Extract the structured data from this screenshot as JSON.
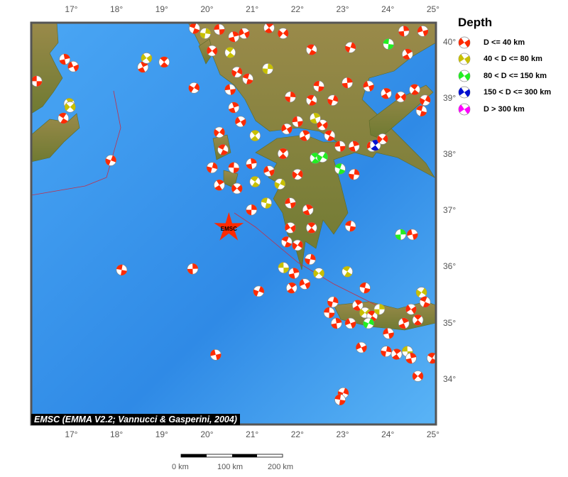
{
  "map": {
    "lon_range": [
      16.1,
      25.05
    ],
    "lat_range": [
      33.2,
      40.35
    ],
    "lon_ticks": [
      "17°",
      "18°",
      "19°",
      "20°",
      "21°",
      "22°",
      "23°",
      "24°",
      "25°"
    ],
    "lat_ticks": [
      "34°",
      "35°",
      "36°",
      "37°",
      "38°",
      "39°",
      "40°"
    ],
    "credit": "EMSC (EMMA V2.2; Vannucci & Gasperini, 2004)",
    "star": {
      "label": "EMSC",
      "lon": 20.47,
      "lat": 36.7,
      "color": "#ff2a00"
    },
    "colors": {
      "sea": "#3a9cf0",
      "land": "#8a7a3a",
      "trench": "#c0304a"
    }
  },
  "legend": {
    "title": "Depth",
    "items": [
      {
        "label": "D <= 40 km",
        "color": "#ff2a00"
      },
      {
        "label": "40 < D <= 80 km",
        "color": "#c8c000"
      },
      {
        "label": "80 < D <= 150 km",
        "color": "#22ee22"
      },
      {
        "label": "150 < D <= 300 km",
        "color": "#0010d0"
      },
      {
        "label": "D > 300 km",
        "color": "#ff00ff"
      }
    ]
  },
  "scale_bar": {
    "labels": [
      "0 km",
      "100 km",
      "200 km"
    ]
  },
  "events": [
    [
      16.22,
      39.31,
      0
    ],
    [
      16.84,
      39.7,
      0
    ],
    [
      17.03,
      39.57,
      0
    ],
    [
      16.94,
      38.91,
      1
    ],
    [
      16.96,
      38.85,
      1
    ],
    [
      16.81,
      38.65,
      0
    ],
    [
      17.86,
      37.9,
      0
    ],
    [
      18.1,
      35.95,
      0
    ],
    [
      19.67,
      35.97,
      0
    ],
    [
      20.18,
      34.44,
      0
    ],
    [
      18.57,
      39.56,
      0
    ],
    [
      18.65,
      39.72,
      1
    ],
    [
      19.04,
      39.65,
      0
    ],
    [
      19.7,
      39.19,
      0
    ],
    [
      19.71,
      40.25,
      0
    ],
    [
      19.95,
      40.16,
      1
    ],
    [
      20.26,
      40.23,
      0
    ],
    [
      20.58,
      40.1,
      0
    ],
    [
      20.81,
      40.16,
      0
    ],
    [
      21.36,
      40.26,
      0
    ],
    [
      21.67,
      40.16,
      0
    ],
    [
      22.3,
      39.87,
      0
    ],
    [
      23.16,
      39.91,
      0
    ],
    [
      24.0,
      39.97,
      2
    ],
    [
      24.34,
      40.2,
      0
    ],
    [
      24.76,
      40.2,
      0
    ],
    [
      24.42,
      39.79,
      0
    ],
    [
      20.1,
      39.85,
      0
    ],
    [
      20.5,
      39.82,
      1
    ],
    [
      20.65,
      39.47,
      0
    ],
    [
      20.89,
      39.35,
      0
    ],
    [
      21.33,
      39.53,
      1
    ],
    [
      20.5,
      39.16,
      0
    ],
    [
      20.58,
      38.84,
      0
    ],
    [
      20.73,
      38.59,
      0
    ],
    [
      21.05,
      38.34,
      1
    ],
    [
      20.26,
      38.4,
      0
    ],
    [
      20.34,
      38.09,
      0
    ],
    [
      20.1,
      37.77,
      0
    ],
    [
      20.58,
      37.77,
      0
    ],
    [
      20.97,
      37.84,
      0
    ],
    [
      21.36,
      37.71,
      0
    ],
    [
      20.26,
      37.46,
      0
    ],
    [
      20.65,
      37.4,
      0
    ],
    [
      21.05,
      37.52,
      1
    ],
    [
      21.6,
      37.48,
      1
    ],
    [
      21.3,
      37.14,
      1
    ],
    [
      20.97,
      37.02,
      0
    ],
    [
      21.83,
      37.14,
      0
    ],
    [
      22.22,
      37.02,
      0
    ],
    [
      21.83,
      36.7,
      0
    ],
    [
      22.3,
      36.7,
      0
    ],
    [
      21.99,
      36.39,
      0
    ],
    [
      21.75,
      36.45,
      0
    ],
    [
      22.27,
      36.14,
      0
    ],
    [
      21.68,
      35.99,
      1
    ],
    [
      21.91,
      35.89,
      0
    ],
    [
      22.15,
      35.7,
      0
    ],
    [
      21.86,
      35.63,
      0
    ],
    [
      22.46,
      35.89,
      1
    ],
    [
      23.09,
      35.92,
      1
    ],
    [
      21.13,
      35.57,
      0
    ],
    [
      23.16,
      36.73,
      0
    ],
    [
      24.27,
      36.58,
      2
    ],
    [
      24.53,
      36.58,
      0
    ],
    [
      22.15,
      38.34,
      0
    ],
    [
      22.54,
      38.53,
      0
    ],
    [
      22.38,
      37.94,
      2
    ],
    [
      22.54,
      37.96,
      2
    ],
    [
      22.93,
      37.75,
      2
    ],
    [
      23.24,
      37.65,
      0
    ],
    [
      22.93,
      38.15,
      0
    ],
    [
      23.24,
      38.15,
      0
    ],
    [
      23.64,
      38.15,
      0
    ],
    [
      23.71,
      38.17,
      3
    ],
    [
      23.87,
      38.28,
      0
    ],
    [
      22.3,
      38.97,
      0
    ],
    [
      22.77,
      38.97,
      0
    ],
    [
      22.46,
      39.22,
      0
    ],
    [
      23.09,
      39.28,
      0
    ],
    [
      23.56,
      39.22,
      0
    ],
    [
      23.95,
      39.09,
      0
    ],
    [
      24.27,
      39.03,
      0
    ],
    [
      24.58,
      39.16,
      0
    ],
    [
      24.81,
      38.97,
      0
    ],
    [
      24.73,
      38.78,
      0
    ],
    [
      21.83,
      39.03,
      0
    ],
    [
      21.99,
      38.59,
      0
    ],
    [
      22.38,
      38.65,
      1
    ],
    [
      21.75,
      38.46,
      0
    ],
    [
      21.67,
      38.02,
      0
    ],
    [
      21.99,
      37.65,
      0
    ],
    [
      22.7,
      38.34,
      0
    ],
    [
      22.77,
      35.38,
      0
    ],
    [
      22.69,
      35.19,
      0
    ],
    [
      22.85,
      35.0,
      0
    ],
    [
      23.16,
      35.0,
      0
    ],
    [
      23.32,
      35.32,
      0
    ],
    [
      23.48,
      35.19,
      1
    ],
    [
      23.64,
      35.13,
      0
    ],
    [
      23.56,
      35.0,
      2
    ],
    [
      23.48,
      35.63,
      0
    ],
    [
      23.8,
      35.25,
      1
    ],
    [
      24.0,
      34.82,
      0
    ],
    [
      24.34,
      35.0,
      0
    ],
    [
      24.5,
      35.25,
      0
    ],
    [
      24.65,
      35.06,
      0
    ],
    [
      24.73,
      35.55,
      1
    ],
    [
      24.81,
      35.38,
      0
    ],
    [
      23.95,
      34.5,
      0
    ],
    [
      24.42,
      34.5,
      1
    ],
    [
      24.5,
      34.38,
      0
    ],
    [
      23.4,
      34.57,
      0
    ],
    [
      24.18,
      34.45,
      0
    ],
    [
      24.65,
      34.06,
      0
    ],
    [
      24.97,
      34.38,
      0
    ],
    [
      23.0,
      33.76,
      0
    ],
    [
      22.93,
      33.64,
      0
    ]
  ]
}
